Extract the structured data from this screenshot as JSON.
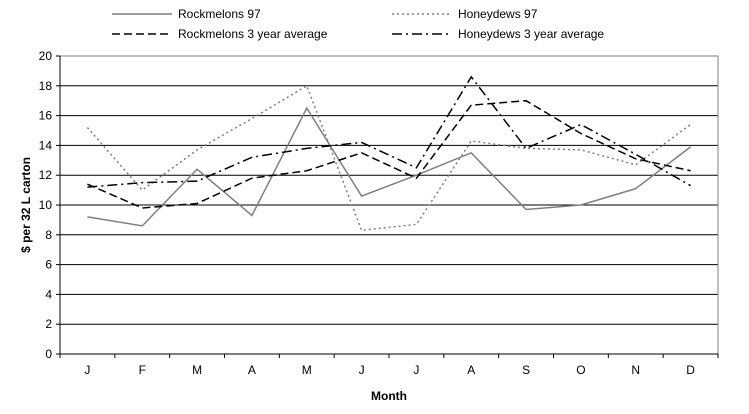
{
  "chart_data": {
    "type": "line",
    "title": "",
    "xlabel": "Month",
    "ylabel": "$ per 32 L carton",
    "categories": [
      "J",
      "F",
      "M",
      "A",
      "M",
      "J",
      "J",
      "A",
      "S",
      "O",
      "N",
      "D"
    ],
    "ylim": [
      0,
      20
    ],
    "yticks": [
      0,
      2,
      4,
      6,
      8,
      10,
      12,
      14,
      16,
      18,
      20
    ],
    "grid": "horizontal",
    "legend_position": "top",
    "series": [
      {
        "name": "Rockmelons 97",
        "style": "solid",
        "color": "#7f7f7f",
        "values": [
          9.2,
          8.6,
          12.4,
          9.3,
          16.5,
          10.6,
          12.0,
          13.5,
          9.7,
          10.0,
          11.1,
          13.9
        ]
      },
      {
        "name": "Honeydews 97",
        "style": "dotted",
        "color": "#7f7f7f",
        "values": [
          15.2,
          11.0,
          13.7,
          15.8,
          18.0,
          8.3,
          8.7,
          14.3,
          13.8,
          13.7,
          12.7,
          15.4
        ]
      },
      {
        "name": "Rockmelons 3 year average",
        "style": "dashed",
        "color": "#000000",
        "values": [
          11.4,
          9.8,
          10.1,
          11.8,
          12.3,
          13.5,
          11.8,
          16.7,
          17.0,
          14.8,
          13.1,
          12.3
        ]
      },
      {
        "name": "Honeydews 3 year average",
        "style": "dashdot",
        "color": "#000000",
        "values": [
          11.2,
          11.5,
          11.6,
          13.2,
          13.8,
          14.2,
          12.5,
          18.6,
          13.8,
          15.4,
          13.4,
          11.3
        ]
      }
    ]
  }
}
